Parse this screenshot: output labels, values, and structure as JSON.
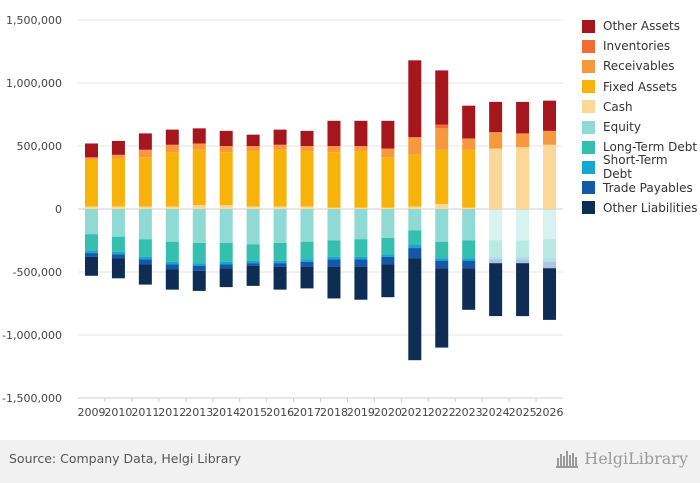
{
  "chart_data": {
    "type": "bar",
    "stacked": true,
    "title": "",
    "xlabel": "",
    "ylabel": "",
    "ylim": [
      -1500000,
      1500000
    ],
    "yticks": [
      -1500000,
      -1000000,
      -500000,
      0,
      500000,
      1000000,
      1500000
    ],
    "ytick_labels": [
      "-1,500,000",
      "-1,000,000",
      "-500,000",
      "0",
      "500,000",
      "1,000,000",
      "1,500,000"
    ],
    "categories": [
      "2009",
      "2010",
      "2011",
      "2012",
      "2013",
      "2014",
      "2015",
      "2016",
      "2017",
      "2018",
      "2019",
      "2020",
      "2021",
      "2022",
      "2023",
      "2024",
      "2025",
      "2026"
    ],
    "forecast_from": "2024",
    "grid": true,
    "legend_position": "right",
    "assets": [
      {
        "name": "Cash",
        "color": "#fbd898",
        "values": [
          20000,
          20000,
          20000,
          20000,
          30000,
          30000,
          20000,
          20000,
          20000,
          10000,
          10000,
          10000,
          20000,
          40000,
          10000,
          480000,
          490000,
          510000
        ]
      },
      {
        "name": "Fixed Assets",
        "color": "#f8b30a",
        "values": [
          370000,
          380000,
          390000,
          430000,
          440000,
          420000,
          440000,
          450000,
          440000,
          440000,
          450000,
          400000,
          410000,
          430000,
          460000,
          0,
          0,
          0
        ]
      },
      {
        "name": "Receivables",
        "color": "#f7983e",
        "values": [
          20000,
          30000,
          60000,
          60000,
          50000,
          50000,
          40000,
          40000,
          40000,
          50000,
          40000,
          70000,
          140000,
          170000,
          90000,
          130000,
          110000,
          110000
        ]
      },
      {
        "name": "Inventories",
        "color": "#f26b33",
        "values": [
          0,
          0,
          0,
          0,
          0,
          0,
          0,
          0,
          0,
          0,
          0,
          0,
          0,
          30000,
          0,
          0,
          0,
          0
        ]
      },
      {
        "name": "Other Assets",
        "color": "#a6161d",
        "values": [
          110000,
          110000,
          130000,
          120000,
          120000,
          120000,
          90000,
          120000,
          120000,
          200000,
          200000,
          220000,
          610000,
          430000,
          260000,
          240000,
          250000,
          240000
        ]
      }
    ],
    "liabilities": [
      {
        "name": "Equity",
        "color": "#8fdad4",
        "values": [
          -200000,
          -220000,
          -240000,
          -260000,
          -270000,
          -270000,
          -280000,
          -270000,
          -260000,
          -250000,
          -240000,
          -230000,
          -170000,
          -260000,
          -250000,
          -250000,
          -250000,
          -240000
        ]
      },
      {
        "name": "Long-Term Debt",
        "color": "#34bfae",
        "values": [
          -130000,
          -120000,
          -140000,
          -160000,
          -160000,
          -150000,
          -130000,
          -140000,
          -140000,
          -130000,
          -140000,
          -130000,
          -110000,
          -130000,
          -140000,
          -130000,
          -130000,
          -150000
        ]
      },
      {
        "name": "Short-Term Debt",
        "color": "#17a6d2",
        "values": [
          -20000,
          -20000,
          -20000,
          -20000,
          -20000,
          -20000,
          -20000,
          -20000,
          -20000,
          -20000,
          -20000,
          -20000,
          -30000,
          -20000,
          -20000,
          -20000,
          -20000,
          -30000
        ]
      },
      {
        "name": "Trade Payables",
        "color": "#1459a8",
        "values": [
          -30000,
          -30000,
          -40000,
          -40000,
          -40000,
          -30000,
          -20000,
          -30000,
          -40000,
          -60000,
          -60000,
          -60000,
          -80000,
          -60000,
          -60000,
          -30000,
          -30000,
          -50000
        ]
      },
      {
        "name": "Other Liabilities",
        "color": "#0d2d55",
        "values": [
          -150000,
          -160000,
          -160000,
          -160000,
          -160000,
          -150000,
          -160000,
          -180000,
          -170000,
          -250000,
          -260000,
          -260000,
          -810000,
          -630000,
          -330000,
          -420000,
          -420000,
          -410000
        ]
      }
    ]
  },
  "legend_items": [
    {
      "name": "Other Assets",
      "color": "#a6161d"
    },
    {
      "name": "Inventories",
      "color": "#f26b33"
    },
    {
      "name": "Receivables",
      "color": "#f7983e"
    },
    {
      "name": "Fixed Assets",
      "color": "#f8b30a"
    },
    {
      "name": "Cash",
      "color": "#fbd898"
    },
    {
      "name": "Equity",
      "color": "#8fdad4"
    },
    {
      "name": "Long-Term Debt",
      "color": "#34bfae"
    },
    {
      "name": "Short-Term Debt",
      "color": "#17a6d2"
    },
    {
      "name": "Trade Payables",
      "color": "#1459a8"
    },
    {
      "name": "Other Liabilities",
      "color": "#0d2d55"
    }
  ],
  "footer": {
    "source": "Source: Company Data, Helgi Library",
    "brand": "HelgiLibrary",
    "logo_icon": "helgi-library-logo-icon"
  }
}
